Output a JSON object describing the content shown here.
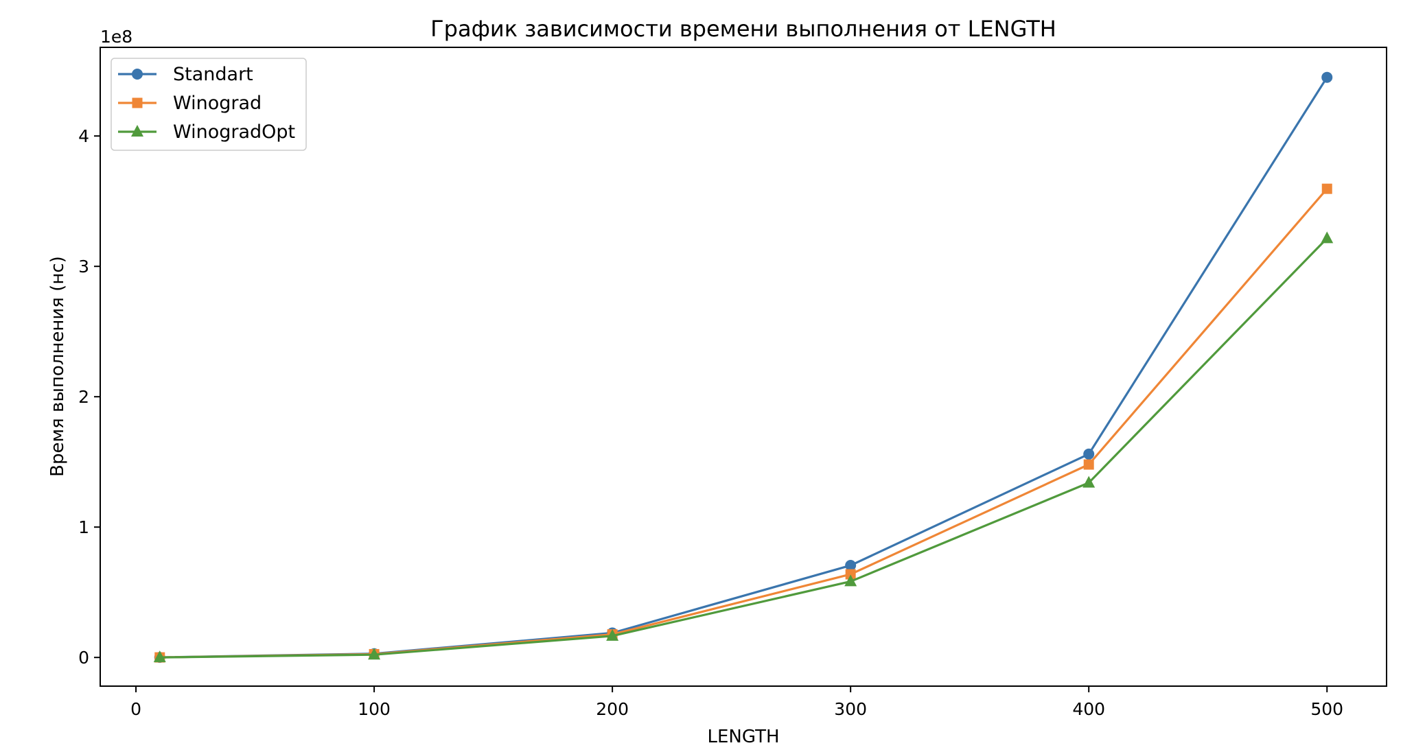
{
  "chart_data": {
    "type": "line",
    "title": "График зависимости времени выполнения от LENGTH",
    "xlabel": "LENGTH",
    "ylabel": "Время выполнения (нс)",
    "y_scale_label": "1e8",
    "x_ticks": [
      "0",
      "100",
      "200",
      "300",
      "400",
      "500"
    ],
    "x_tick_values": [
      0,
      100,
      200,
      300,
      400,
      500
    ],
    "y_ticks": [
      "0",
      "1",
      "2",
      "3",
      "4"
    ],
    "y_tick_values": [
      0,
      100000000,
      200000000,
      300000000,
      400000000
    ],
    "xlim": [
      -15,
      525
    ],
    "ylim": [
      -22000000,
      468000000
    ],
    "grid": false,
    "legend_position": "top-left",
    "x": [
      10,
      100,
      200,
      300,
      400,
      500
    ],
    "series": [
      {
        "name": "Standart",
        "color": "#3a75ad",
        "marker": "circle",
        "values": [
          60000,
          2900000,
          18800000,
          70600000,
          156000000,
          445000000
        ]
      },
      {
        "name": "Winograd",
        "color": "#ef8636",
        "marker": "square",
        "values": [
          50000,
          2500000,
          17700000,
          63800000,
          148000000,
          359500000
        ]
      },
      {
        "name": "WinogradOpt",
        "color": "#509a3c",
        "marker": "triangle",
        "values": [
          40000,
          2100000,
          16500000,
          58300000,
          134000000,
          321500000
        ]
      }
    ]
  }
}
